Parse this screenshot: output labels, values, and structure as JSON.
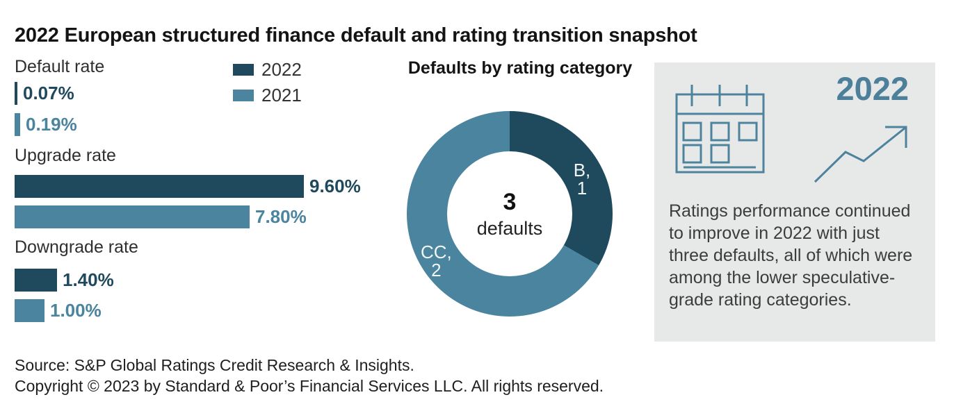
{
  "title": "2022 European structured finance default and rating transition snapshot",
  "colors": {
    "dark_2022": "#1F4A5D",
    "teal_2021": "#4A849E",
    "panel_background": "#E7E8E8",
    "panel_icon": "#4D839C",
    "panel_year_text": "#4C7F99"
  },
  "chart_data": [
    {
      "type": "bar",
      "orientation": "horizontal",
      "categories": [
        "Default rate",
        "Upgrade rate",
        "Downgrade rate"
      ],
      "series": [
        {
          "name": "2022",
          "color": "#1F4A5D",
          "values": [
            0.07,
            9.6,
            1.4
          ],
          "value_labels": [
            "0.07%",
            "9.60%",
            "1.40%"
          ]
        },
        {
          "name": "2021",
          "color": "#4A849E",
          "values": [
            0.19,
            7.8,
            1.0
          ],
          "value_labels": [
            "0.19%",
            "7.80%",
            "1.00%"
          ]
        }
      ],
      "xlim": [
        0,
        9.6
      ],
      "grid": false,
      "value_labels_position": "end-of-bar",
      "legend_position": "top"
    },
    {
      "type": "pie",
      "donut": true,
      "title": "Defaults by rating category",
      "center_value": "3",
      "center_label": "defaults",
      "start_angle_deg": 0,
      "direction": "clockwise",
      "slices": [
        {
          "category": "B",
          "value": 1,
          "color": "#1F4A5D",
          "label_lines": [
            "B,",
            "1"
          ]
        },
        {
          "category": "CC",
          "value": 2,
          "color": "#4A849E",
          "label_lines": [
            "CC,",
            "2"
          ]
        }
      ]
    }
  ],
  "panel": {
    "year": "2022",
    "calendar_icon": "calendar-icon",
    "trend_icon": "trend-up-arrow-icon",
    "text": "Ratings performance continued to improve in 2022 with just three defaults, all of which were among the lower speculative-grade rating categories."
  },
  "footer": {
    "source": "Source: S&P Global Ratings Credit Research & Insights.",
    "copyright": "Copyright © 2023 by Standard & Poor’s Financial Services LLC. All rights reserved."
  }
}
